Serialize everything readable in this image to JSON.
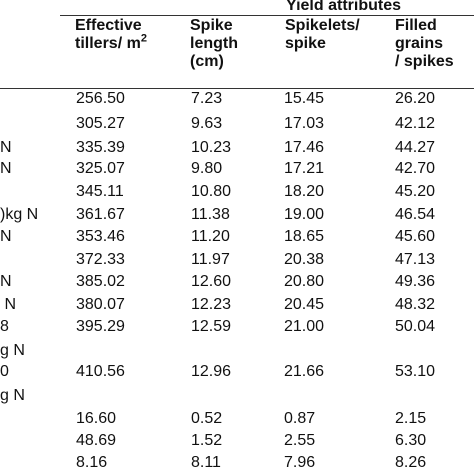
{
  "header": {
    "group_title": "Yield attributes",
    "col1_line1": "Effective",
    "col1_line2": "tillers/ m",
    "col1_sup": "2",
    "col2_line1": "Spike",
    "col2_line2": "length",
    "col2_line3": "(cm)",
    "col3_line1": "Spikelets/",
    "col3_line2": "spike",
    "col4_line1": "Filled",
    "col4_line2": "grains",
    "col4_line3": "/ spikes"
  },
  "labels": {
    "r2": "N",
    "r3": "N",
    "r5": ")kg N",
    "r6": "N",
    "r8": "N",
    "r9": " N",
    "r10": "8",
    "r10b": "g N",
    "r11": "0",
    "r11b": "g N"
  },
  "rows": [
    {
      "tillers": "256.50",
      "length": "7.23",
      "spikelets": "15.45",
      "grains": "26.20"
    },
    {
      "tillers": "305.27",
      "length": "9.63",
      "spikelets": "17.03",
      "grains": "42.12"
    },
    {
      "tillers": "335.39",
      "length": "10.23",
      "spikelets": "17.46",
      "grains": "44.27"
    },
    {
      "tillers": "325.07",
      "length": "9.80",
      "spikelets": "17.21",
      "grains": "42.70"
    },
    {
      "tillers": "345.11",
      "length": "10.80",
      "spikelets": "18.20",
      "grains": "45.20"
    },
    {
      "tillers": "361.67",
      "length": "11.38",
      "spikelets": "19.00",
      "grains": "46.54"
    },
    {
      "tillers": "353.46",
      "length": "11.20",
      "spikelets": "18.65",
      "grains": "45.60"
    },
    {
      "tillers": "372.33",
      "length": "11.97",
      "spikelets": "20.38",
      "grains": "47.13"
    },
    {
      "tillers": "385.02",
      "length": "12.60",
      "spikelets": "20.80",
      "grains": "49.36"
    },
    {
      "tillers": "380.07",
      "length": "12.23",
      "spikelets": "20.45",
      "grains": "48.32"
    },
    {
      "tillers": "395.29",
      "length": "12.59",
      "spikelets": "21.00",
      "grains": "50.04"
    },
    {
      "tillers": "410.56",
      "length": "12.96",
      "spikelets": "21.66",
      "grains": "53.10"
    },
    {
      "tillers": "16.60",
      "length": "0.52",
      "spikelets": "0.87",
      "grains": "2.15"
    },
    {
      "tillers": "48.69",
      "length": "1.52",
      "spikelets": "2.55",
      "grains": "6.30"
    },
    {
      "tillers": "8.16",
      "length": "8.11",
      "spikelets": "7.96",
      "grains": "8.26"
    }
  ]
}
